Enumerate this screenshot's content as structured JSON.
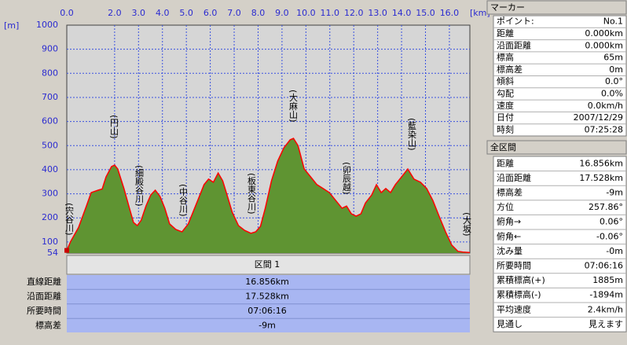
{
  "chart_data": {
    "type": "area",
    "y_unit_label": "[m]",
    "x_unit_label": "[km]",
    "x": [
      0,
      0.16,
      0.49,
      0.82,
      1.02,
      1.31,
      1.48,
      1.64,
      1.87,
      2.0,
      2.13,
      2.39,
      2.62,
      2.79,
      2.95,
      3.11,
      3.31,
      3.51,
      3.7,
      3.9,
      4.1,
      4.3,
      4.56,
      4.82,
      5.08,
      5.41,
      5.74,
      5.93,
      6.13,
      6.33,
      6.52,
      6.72,
      6.92,
      7.18,
      7.44,
      7.7,
      7.9,
      8.1,
      8.3,
      8.56,
      8.82,
      9.08,
      9.34,
      9.48,
      9.67,
      9.93,
      10.2,
      10.46,
      10.72,
      10.98,
      11.25,
      11.51,
      11.7,
      11.9,
      12.1,
      12.3,
      12.49,
      12.75,
      12.95,
      13.15,
      13.34,
      13.54,
      13.74,
      14.0,
      14.26,
      14.52,
      14.79,
      15.05,
      15.31,
      15.57,
      15.84,
      16.1,
      16.36,
      16.56,
      16.856
    ],
    "values": [
      65,
      102,
      160,
      249,
      305,
      315,
      320,
      370,
      413,
      419,
      403,
      322,
      240,
      181,
      168,
      190,
      249,
      295,
      315,
      289,
      240,
      175,
      152,
      142,
      175,
      256,
      338,
      361,
      348,
      386,
      354,
      289,
      223,
      168,
      148,
      136,
      142,
      165,
      240,
      354,
      436,
      491,
      524,
      530,
      500,
      403,
      370,
      338,
      322,
      305,
      272,
      240,
      249,
      217,
      207,
      217,
      262,
      295,
      338,
      305,
      322,
      305,
      338,
      370,
      403,
      361,
      348,
      322,
      272,
      207,
      142,
      87,
      61,
      58,
      56
    ],
    "color": "#ff0000",
    "fill_color": "#5f9432",
    "xlim": [
      0,
      16.856
    ],
    "xticks": [
      {
        "value": 0,
        "label": "0.0"
      },
      {
        "value": 2,
        "label": "2.0"
      },
      {
        "value": 3,
        "label": "3.0"
      },
      {
        "value": 4,
        "label": "4.0"
      },
      {
        "value": 5,
        "label": "5.0"
      },
      {
        "value": 6,
        "label": "6.0"
      },
      {
        "value": 7,
        "label": "7.0"
      },
      {
        "value": 8,
        "label": "8.0"
      },
      {
        "value": 9,
        "label": "9.0"
      },
      {
        "value": 10,
        "label": "10.0"
      },
      {
        "value": 11,
        "label": "11.0"
      },
      {
        "value": 12,
        "label": "12.0"
      },
      {
        "value": 13,
        "label": "13.0"
      },
      {
        "value": 14,
        "label": "14.0"
      },
      {
        "value": 15,
        "label": "15.0"
      },
      {
        "value": 16,
        "label": "16.0"
      }
    ],
    "ylim": [
      54,
      1000
    ],
    "yticks": [
      54,
      100,
      200,
      300,
      400,
      500,
      600,
      700,
      800,
      900,
      1000
    ],
    "grid": true,
    "annotations": [
      "(宍谷川)",
      "(円山)",
      "(細殿谷川)",
      "(中谷川)",
      "(板東谷川)",
      "(大麻山)",
      "(卯辰越)",
      "(藍染山)",
      "(大坂)"
    ]
  },
  "section_table": {
    "title": "区間 1",
    "rows": [
      [
        "直線距離",
        "16.856km"
      ],
      [
        "沿面距離",
        "17.528km"
      ],
      [
        "所要時間",
        "07:06:16"
      ],
      [
        "標高差",
        "-9m"
      ]
    ]
  },
  "marker_panel": {
    "title": "マーカー",
    "rows": [
      [
        "ポイント:",
        "No.1"
      ],
      [
        "距離",
        "0.000km"
      ],
      [
        "沿面距離",
        "0.000km"
      ],
      [
        "標高",
        "65m"
      ],
      [
        "標高差",
        "0m"
      ],
      [
        "傾斜",
        "0.0°"
      ],
      [
        "勾配",
        "0.0%"
      ],
      [
        "速度",
        "0.0km/h"
      ],
      [
        "日付",
        "2007/12/29"
      ],
      [
        "時刻",
        "07:25:28"
      ]
    ]
  },
  "total_panel": {
    "title": "全区間",
    "rows": [
      [
        "距離",
        "16.856km"
      ],
      [
        "沿面距離",
        "17.528km"
      ],
      [
        "標高差",
        "-9m"
      ],
      [
        "方位",
        "257.86°"
      ],
      [
        "俯角→",
        "0.06°"
      ],
      [
        "俯角←",
        "-0.06°"
      ],
      [
        "沈み量",
        "-0m"
      ],
      [
        "所要時間",
        "07:06:16"
      ],
      [
        "累積標高(+)",
        "1885m"
      ],
      [
        "累積標高(-)",
        "-1894m"
      ],
      [
        "平均速度",
        "2.4km/h"
      ],
      [
        "見通し",
        "見えます"
      ]
    ]
  }
}
